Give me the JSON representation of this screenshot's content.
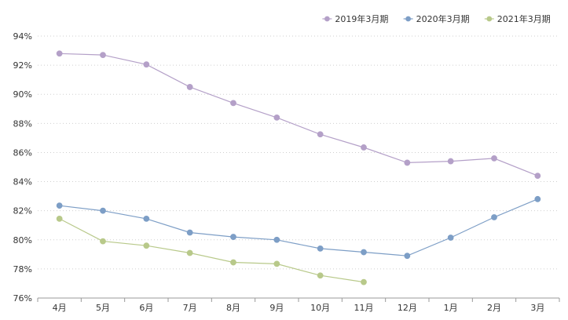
{
  "chart_data": {
    "type": "line",
    "title": "",
    "xlabel": "",
    "ylabel": "",
    "categories": [
      "4月",
      "5月",
      "6月",
      "7月",
      "8月",
      "9月",
      "10月",
      "11月",
      "12月",
      "1月",
      "2月",
      "3月"
    ],
    "ylim": [
      76,
      94
    ],
    "yticks": [
      76,
      78,
      80,
      82,
      84,
      86,
      88,
      90,
      92,
      94
    ],
    "yticks_labels": [
      "76%",
      "78%",
      "80%",
      "82%",
      "84%",
      "86%",
      "88%",
      "90%",
      "92%",
      "94%"
    ],
    "grid": true,
    "legend_position": "top-right",
    "series": [
      {
        "name": "2019年3月期",
        "color": "#b4a0c8",
        "values": [
          92.8,
          92.7,
          92.05,
          90.5,
          89.4,
          88.4,
          87.25,
          86.35,
          85.3,
          85.4,
          85.6,
          84.4
        ]
      },
      {
        "name": "2020年3月期",
        "color": "#7d9ec6",
        "values": [
          82.35,
          82.0,
          81.45,
          80.5,
          80.2,
          80.0,
          79.4,
          79.15,
          78.9,
          80.15,
          81.55,
          82.8
        ]
      },
      {
        "name": "2021年3月期",
        "color": "#b8c98a",
        "values": [
          81.45,
          79.9,
          79.6,
          79.1,
          78.45,
          78.35,
          77.55,
          77.1,
          null,
          null,
          null,
          null
        ]
      }
    ]
  }
}
